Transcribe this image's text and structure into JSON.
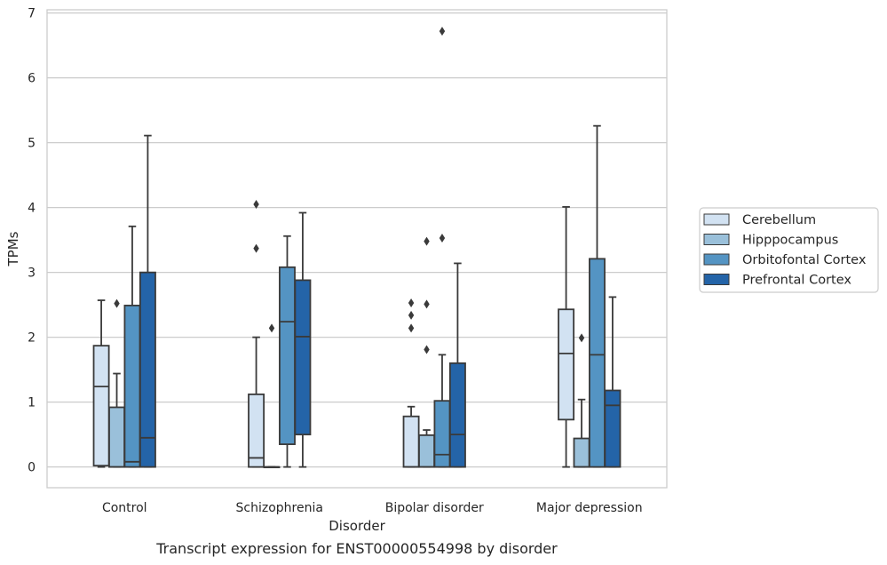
{
  "caption": "Transcript expression for ENST00000554998 by disorder",
  "chart_data": {
    "type": "box",
    "xlabel": "Disorder",
    "ylabel": "TPMs",
    "ylim": [
      -0.32,
      7.05
    ],
    "yticks": [
      0,
      1,
      2,
      3,
      4,
      5,
      6,
      7
    ],
    "grid": "horizontal",
    "legend_position": "right",
    "categories": [
      "Control",
      "Schizophrenia",
      "Bipolar disorder",
      "Major depression"
    ],
    "series": [
      {
        "name": "Cerebellum",
        "color": "#d2e2f2",
        "boxes": [
          {
            "category": "Control",
            "whisker_low": 0.0,
            "q1": 0.02,
            "median": 1.24,
            "q3": 1.87,
            "whisker_high": 2.57,
            "outliers": []
          },
          {
            "category": "Schizophrenia",
            "whisker_low": 0.0,
            "q1": 0.0,
            "median": 0.14,
            "q3": 1.12,
            "whisker_high": 2.0,
            "outliers": [
              3.37,
              4.05
            ]
          },
          {
            "category": "Bipolar disorder",
            "whisker_low": 0.0,
            "q1": 0.0,
            "median": 0.0,
            "q3": 0.78,
            "whisker_high": 0.93,
            "outliers": [
              2.14,
              2.34,
              2.53
            ]
          },
          {
            "category": "Major depression",
            "whisker_low": 0.0,
            "q1": 0.73,
            "median": 1.75,
            "q3": 2.43,
            "whisker_high": 4.01,
            "outliers": []
          }
        ]
      },
      {
        "name": "Hipppocampus",
        "color": "#9ac0da",
        "boxes": [
          {
            "category": "Control",
            "whisker_low": 0.0,
            "q1": 0.0,
            "median": 0.0,
            "q3": 0.92,
            "whisker_high": 1.44,
            "outliers": [
              2.52
            ]
          },
          {
            "category": "Schizophrenia",
            "whisker_low": 0.0,
            "q1": 0.0,
            "median": 0.0,
            "q3": 0.0,
            "whisker_high": 0.0,
            "outliers": [
              2.14
            ]
          },
          {
            "category": "Bipolar disorder",
            "whisker_low": 0.0,
            "q1": 0.0,
            "median": 0.0,
            "q3": 0.49,
            "whisker_high": 0.57,
            "outliers": [
              1.81,
              2.51,
              3.48
            ]
          },
          {
            "category": "Major depression",
            "whisker_low": 0.0,
            "q1": 0.0,
            "median": 0.0,
            "q3": 0.44,
            "whisker_high": 1.04,
            "outliers": [
              1.99
            ]
          }
        ]
      },
      {
        "name": "Orbitofontal Cortex",
        "color": "#5494c3",
        "boxes": [
          {
            "category": "Control",
            "whisker_low": 0.0,
            "q1": 0.0,
            "median": 0.08,
            "q3": 2.49,
            "whisker_high": 3.71,
            "outliers": []
          },
          {
            "category": "Schizophrenia",
            "whisker_low": 0.0,
            "q1": 0.35,
            "median": 2.24,
            "q3": 3.08,
            "whisker_high": 3.56,
            "outliers": []
          },
          {
            "category": "Bipolar disorder",
            "whisker_low": 0.0,
            "q1": 0.0,
            "median": 0.19,
            "q3": 1.02,
            "whisker_high": 1.73,
            "outliers": [
              3.53,
              6.72
            ]
          },
          {
            "category": "Major depression",
            "whisker_low": 0.0,
            "q1": 0.0,
            "median": 1.73,
            "q3": 3.21,
            "whisker_high": 5.26,
            "outliers": []
          }
        ]
      },
      {
        "name": "Prefrontal Cortex",
        "color": "#2464a8",
        "boxes": [
          {
            "category": "Control",
            "whisker_low": 0.0,
            "q1": 0.0,
            "median": 0.45,
            "q3": 3.0,
            "whisker_high": 5.11,
            "outliers": []
          },
          {
            "category": "Schizophrenia",
            "whisker_low": 0.0,
            "q1": 0.5,
            "median": 2.01,
            "q3": 2.88,
            "whisker_high": 3.92,
            "outliers": []
          },
          {
            "category": "Bipolar disorder",
            "whisker_low": 0.0,
            "q1": 0.0,
            "median": 0.5,
            "q3": 1.6,
            "whisker_high": 3.14,
            "outliers": []
          },
          {
            "category": "Major depression",
            "whisker_low": 0.0,
            "q1": 0.0,
            "median": 0.95,
            "q3": 1.18,
            "whisker_high": 2.62,
            "outliers": []
          }
        ]
      }
    ]
  }
}
